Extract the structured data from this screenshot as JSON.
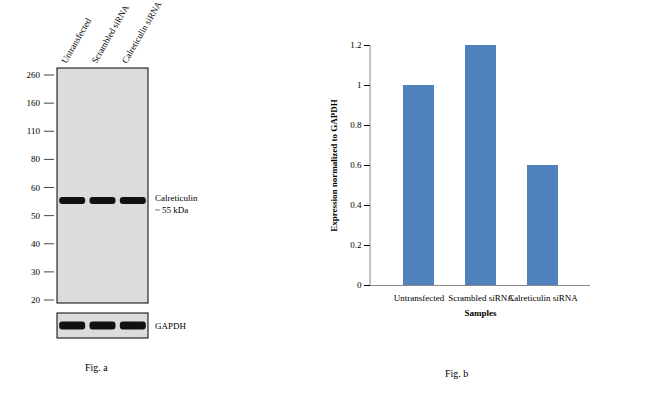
{
  "chart_data": {
    "type": "bar",
    "caption": "Fig. b",
    "categories": [
      "Untransfected",
      "Scrambled siRNA",
      "Calreticulin siRNA"
    ],
    "values": [
      1,
      1.2,
      0.6
    ],
    "color": "#4f81bd",
    "x_label": "Samples",
    "y_label": "Expression normalized to GAPDH",
    "ylim": [
      0,
      1.2
    ],
    "yticks": [
      0,
      0.2,
      0.4,
      0.6,
      0.8,
      1,
      1.2
    ],
    "grid": false
  },
  "blot": {
    "caption": "Fig. a",
    "lanes": [
      "Untransfected",
      "Scrambled siRNA",
      "Calreticulin siRNA"
    ],
    "markers_kda": [
      260,
      160,
      110,
      80,
      60,
      50,
      40,
      30,
      20
    ],
    "band_kda": 55,
    "band_label": [
      "Calreticulin",
      "~ 55 kDa"
    ],
    "loading_control": "GAPDH"
  }
}
